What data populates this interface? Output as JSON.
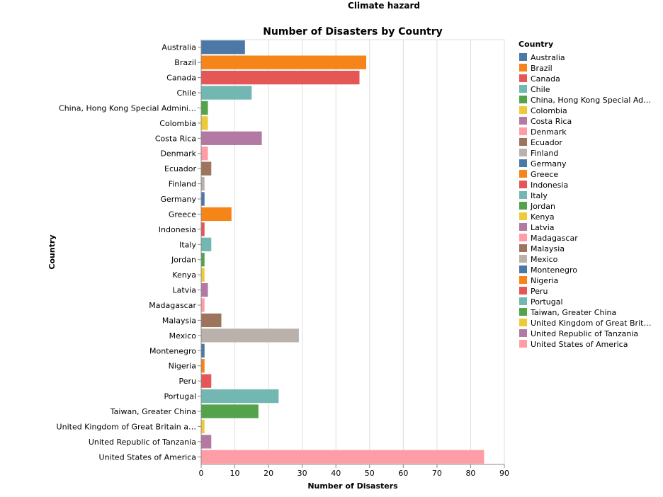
{
  "page": {
    "title": "Climate hazard"
  },
  "chart_data": {
    "type": "bar",
    "orientation": "horizontal",
    "title": "Number of Disasters by Country",
    "xlabel": "Number of Disasters",
    "ylabel": "Country",
    "xlim": [
      0,
      90
    ],
    "x_ticks": [
      0,
      10,
      20,
      30,
      40,
      50,
      60,
      70,
      80,
      90
    ],
    "grid": true,
    "legend_title": "Country",
    "legend_position": "right",
    "categories": [
      "Australia",
      "Brazil",
      "Canada",
      "Chile",
      "China, Hong Kong Special Administrative Region",
      "Colombia",
      "Costa Rica",
      "Denmark",
      "Ecuador",
      "Finland",
      "Germany",
      "Greece",
      "Indonesia",
      "Italy",
      "Jordan",
      "Kenya",
      "Latvia",
      "Madagascar",
      "Malaysia",
      "Mexico",
      "Montenegro",
      "Nigeria",
      "Peru",
      "Portugal",
      "Taiwan, Greater China",
      "United Kingdom of Great Britain and Northern Ireland",
      "United Republic of Tanzania",
      "United States of America"
    ],
    "axis_labels": [
      "Australia",
      "Brazil",
      "Canada",
      "Chile",
      "China, Hong Kong Special Admini…",
      "Colombia",
      "Costa Rica",
      "Denmark",
      "Ecuador",
      "Finland",
      "Germany",
      "Greece",
      "Indonesia",
      "Italy",
      "Jordan",
      "Kenya",
      "Latvia",
      "Madagascar",
      "Malaysia",
      "Mexico",
      "Montenegro",
      "Nigeria",
      "Peru",
      "Portugal",
      "Taiwan, Greater China",
      "United Kingdom of Great Britain a…",
      "United Republic of Tanzania",
      "United States of America"
    ],
    "legend_labels": [
      "Australia",
      "Brazil",
      "Canada",
      "Chile",
      "China, Hong Kong Special Ad…",
      "Colombia",
      "Costa Rica",
      "Denmark",
      "Ecuador",
      "Finland",
      "Germany",
      "Greece",
      "Indonesia",
      "Italy",
      "Jordan",
      "Kenya",
      "Latvia",
      "Madagascar",
      "Malaysia",
      "Mexico",
      "Montenegro",
      "Nigeria",
      "Peru",
      "Portugal",
      "Taiwan, Greater China",
      "United Kingdom of Great Brit…",
      "United Republic of Tanzania",
      "United States of America"
    ],
    "values": [
      13,
      49,
      47,
      15,
      2,
      2,
      18,
      2,
      3,
      1,
      1,
      9,
      1,
      3,
      1,
      1,
      2,
      1,
      6,
      29,
      1,
      1,
      3,
      23,
      17,
      1,
      3,
      84
    ],
    "colors": [
      "#4c78a8",
      "#f58518",
      "#e45756",
      "#72b7b2",
      "#54a24b",
      "#eeca3b",
      "#b279a2",
      "#ff9da6",
      "#9d755d",
      "#bab0ac",
      "#4c78a8",
      "#f58518",
      "#e45756",
      "#72b7b2",
      "#54a24b",
      "#eeca3b",
      "#b279a2",
      "#ff9da6",
      "#9d755d",
      "#bab0ac",
      "#4c78a8",
      "#f58518",
      "#e45756",
      "#72b7b2",
      "#54a24b",
      "#eeca3b",
      "#b279a2",
      "#ff9da6"
    ]
  }
}
